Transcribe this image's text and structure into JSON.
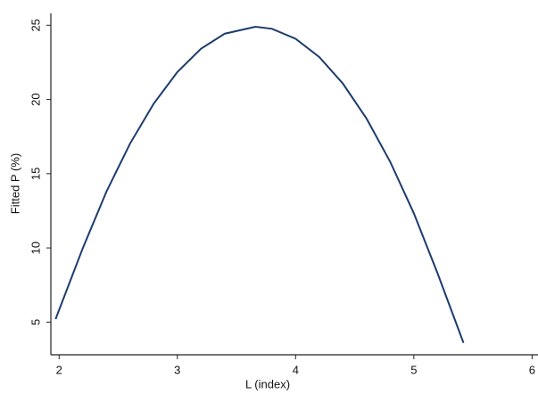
{
  "chart_data": {
    "type": "line",
    "x_label": "L (index)",
    "y_label": "Fitted P (%)",
    "x": [
      1.97,
      2.2,
      2.4,
      2.6,
      2.8,
      3.0,
      3.2,
      3.4,
      3.66,
      3.8,
      4.0,
      4.2,
      4.4,
      4.6,
      4.8,
      5.0,
      5.2,
      5.42
    ],
    "series": [
      {
        "color": "#1c3b6e",
        "values": [
          5.2,
          9.98,
          13.79,
          17.03,
          19.72,
          21.85,
          23.42,
          24.43,
          24.9,
          24.76,
          24.09,
          22.86,
          21.07,
          18.71,
          15.8,
          12.33,
          8.3,
          3.6
        ]
      }
    ],
    "xlim": [
      1.93,
      6.05
    ],
    "xticks": [
      2,
      3,
      4,
      5,
      6
    ],
    "ylim": [
      2.8,
      25.8
    ],
    "yticks": [
      5,
      10,
      15,
      20,
      25
    ]
  }
}
